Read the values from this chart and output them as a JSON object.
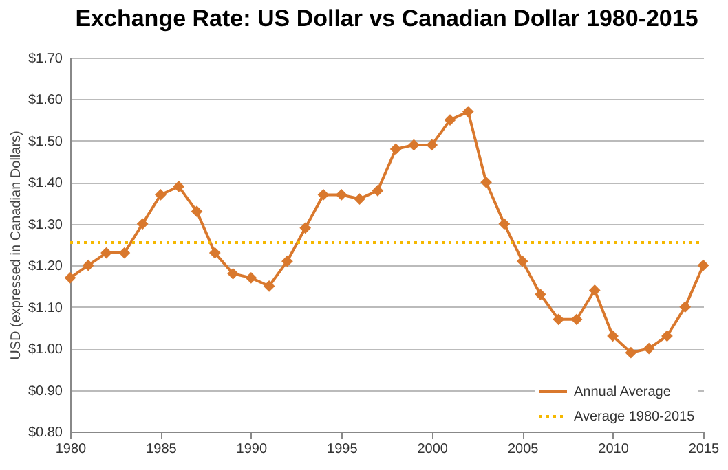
{
  "chart_data": {
    "type": "line",
    "title": "Exchange Rate:  US Dollar vs Canadian Dollar 1980-2015",
    "ylabel": "USD (expressed in Canadian Dollars)",
    "x": [
      1980,
      1981,
      1982,
      1983,
      1984,
      1985,
      1986,
      1987,
      1988,
      1989,
      1990,
      1991,
      1992,
      1993,
      1994,
      1995,
      1996,
      1997,
      1998,
      1999,
      2000,
      2001,
      2002,
      2003,
      2004,
      2005,
      2006,
      2007,
      2008,
      2009,
      2010,
      2011,
      2012,
      2013,
      2014,
      2015
    ],
    "series": [
      {
        "name": "Annual Average",
        "color": "#d9782d",
        "values": [
          1.17,
          1.2,
          1.23,
          1.23,
          1.3,
          1.37,
          1.39,
          1.33,
          1.23,
          1.18,
          1.17,
          1.15,
          1.21,
          1.29,
          1.37,
          1.37,
          1.36,
          1.38,
          1.48,
          1.49,
          1.49,
          1.55,
          1.57,
          1.4,
          1.3,
          1.21,
          1.13,
          1.07,
          1.07,
          1.14,
          1.03,
          0.99,
          1.0,
          1.03,
          1.1,
          1.2
        ]
      }
    ],
    "ref_lines": [
      {
        "axis": "y",
        "value": 1.255,
        "label": "Average 1980-2015",
        "color": "#f5b800",
        "line_style": "dotted"
      }
    ],
    "xlim": [
      1980,
      2015
    ],
    "xticks": [
      1980,
      1985,
      1990,
      1995,
      2000,
      2005,
      2010,
      2015
    ],
    "ylim": [
      0.8,
      1.7
    ],
    "yticks": [
      {
        "value": 0.8,
        "label": "$0.80"
      },
      {
        "value": 0.9,
        "label": "$0.90"
      },
      {
        "value": 1.0,
        "label": "$1.00"
      },
      {
        "value": 1.1,
        "label": "$1.10"
      },
      {
        "value": 1.2,
        "label": "$1.20"
      },
      {
        "value": 1.3,
        "label": "$1.30"
      },
      {
        "value": 1.4,
        "label": "$1.40"
      },
      {
        "value": 1.5,
        "label": "$1.50"
      },
      {
        "value": 1.6,
        "label": "$1.60"
      },
      {
        "value": 1.7,
        "label": "$1.70"
      }
    ],
    "grid": "y",
    "legend": "bottom right",
    "marker": "diamond",
    "line_style": "solid"
  }
}
